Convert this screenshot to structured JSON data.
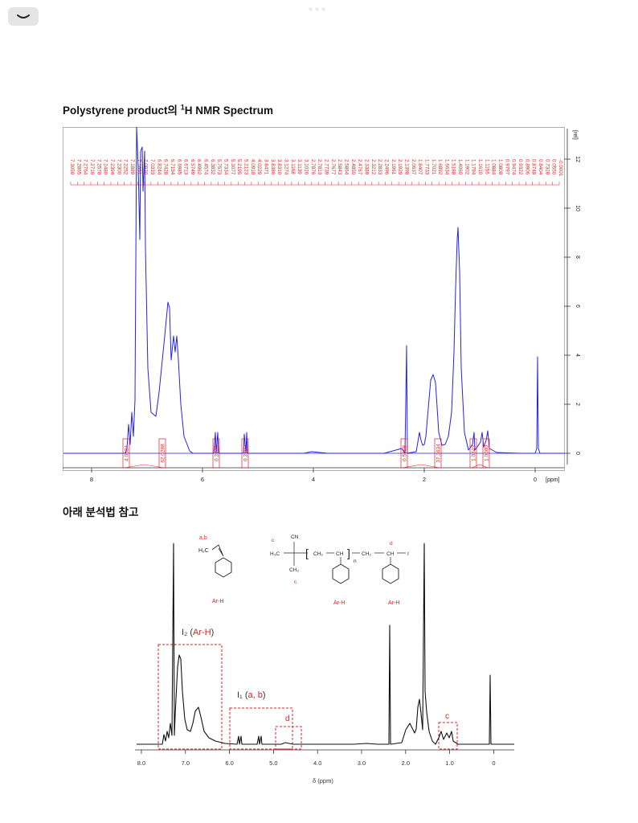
{
  "toolbar": {
    "collapse_glyph": "⌣"
  },
  "heading1": {
    "pre": "Polystyrene product의 ",
    "sup": "1",
    "post": "H NMR Spectrum"
  },
  "heading2": "아래 분석법 참고",
  "spectrum1": {
    "y_unit": "[rel]",
    "x_unit": "[ppm]",
    "y_ticks": [
      "12",
      "10",
      "8",
      "6",
      "4",
      "2",
      "0"
    ],
    "x_ticks": [
      "8",
      "6",
      "4",
      "2",
      "0"
    ],
    "peak_labels": [
      "7.3059",
      "7.2865",
      "7.2764",
      "7.2716",
      "7.2578",
      "7.2480",
      "7.2394",
      "7.2300",
      "7.2252",
      "7.1889",
      "7.1691",
      "7.0830",
      "7.0333",
      "6.8244",
      "6.7428",
      "6.7154",
      "6.6985",
      "6.6713",
      "6.5749",
      "6.4962",
      "6.4574",
      "6.3832",
      "5.7573",
      "5.7334",
      "5.3077",
      "5.2195",
      "5.2123",
      "4.0918",
      "4.0229",
      "3.8471",
      "3.8386",
      "3.8310",
      "3.1274",
      "3.1168",
      "3.1139",
      "3.1026",
      "2.7876",
      "2.7813",
      "2.7739",
      "2.7677",
      "2.5843",
      "2.5864",
      "2.4850",
      "2.4767",
      "2.3389",
      "2.3212",
      "2.2833",
      "2.2496",
      "2.1961",
      "2.1929",
      "2.1398",
      "2.0637",
      "1.8407",
      "1.7733",
      "1.7021",
      "1.6892",
      "1.6634",
      "1.5188",
      "1.4060",
      "1.1902",
      "1.1794",
      "1.1610",
      "1.1156",
      "1.0884",
      "1.0808",
      "0.9797",
      "0.9474",
      "0.9322",
      "0.8906",
      "0.8748",
      "0.8404",
      "0.7328",
      "0.0550",
      "-0.0001"
    ],
    "integrals": [
      "4.0524",
      "62.0288",
      "0.2430",
      "0.2492",
      "0.5658",
      "37.3634",
      "1.0343",
      "1.0000"
    ],
    "colors": {
      "trace": "#2323e6",
      "annotation": "#e02020"
    }
  },
  "spectrum2": {
    "x_ticks": [
      "8.0",
      "7.0",
      "6.0",
      "5.0",
      "4.0",
      "3.0",
      "2.0",
      "1.0",
      "0"
    ],
    "x_label": "δ (ppm)",
    "monomer": {
      "label": "a,b",
      "formula_h2c": "H₂C",
      "ring_label": "Ar-H"
    },
    "polymer": {
      "c_top": "c",
      "cn": "CN",
      "h3c": "H₃C",
      "ch2_a": "CH₂",
      "ch_a": "CH",
      "n": "n",
      "ch2_b": "CH₂",
      "ch_b": "CH",
      "end": "I",
      "ch3": "CH₃",
      "c_bottom": "c",
      "d": "d",
      "ring_label_1": "Ar-H",
      "ring_label_2": "Ar-H"
    },
    "annot_i2": {
      "main": "I₂ (",
      "red": "Ar-H",
      "close": ")"
    },
    "annot_i1": {
      "main": "I₁ (",
      "red": "a, b",
      "close": ")"
    },
    "annot_d": "d",
    "annot_c": "c"
  }
}
